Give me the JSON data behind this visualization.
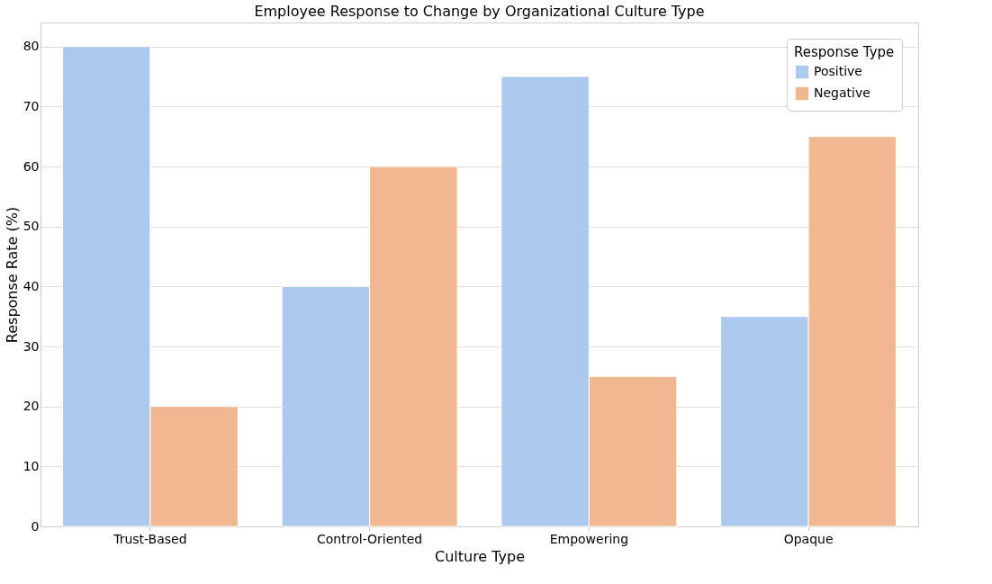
{
  "chart_data": {
    "type": "bar",
    "title": "Employee Response to Change by Organizational Culture Type",
    "xlabel": "Culture Type",
    "ylabel": "Response Rate (%)",
    "legend_title": "Response Type",
    "categories": [
      "Trust-Based",
      "Control-Oriented",
      "Empowering",
      "Opaque"
    ],
    "series": [
      {
        "name": "Positive",
        "color": "#abc9ee",
        "values": [
          80,
          40,
          75,
          35
        ]
      },
      {
        "name": "Negative",
        "color": "#f0b791",
        "values": [
          20,
          60,
          25,
          65
        ]
      }
    ],
    "ylim": [
      0,
      84
    ],
    "yticks": [
      0,
      10,
      20,
      30,
      40,
      50,
      60,
      70,
      80
    ],
    "grid": "y",
    "legend": "top right"
  }
}
